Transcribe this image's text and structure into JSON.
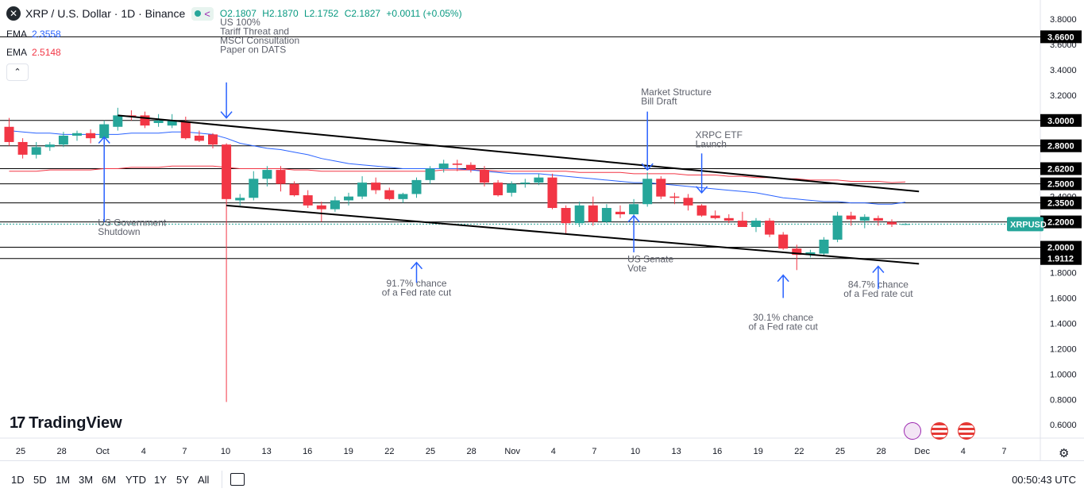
{
  "header": {
    "symbol_title": "XRP / U.S. Dollar · 1D · Binance",
    "open": "O2.1807",
    "high": "H2.1870",
    "low": "L2.1752",
    "close": "C2.1827",
    "change": "+0.0011 (+0.05%)"
  },
  "indicators": [
    {
      "label": "EMA",
      "value": "2.3558",
      "color": "#2962ff"
    },
    {
      "label": "EMA",
      "value": "2.5148",
      "color": "#f23645"
    }
  ],
  "branding": {
    "logo_text": "TradingView"
  },
  "toolbar": {
    "ranges": [
      "1D",
      "5D",
      "1M",
      "3M",
      "6M",
      "YTD",
      "1Y",
      "5Y",
      "All"
    ],
    "clock": "00:50:43 UTC"
  },
  "colors": {
    "up": "#26a69a",
    "down": "#f23645",
    "ema_fast": "#2962ff",
    "ema_slow": "#f23645",
    "annotation": "#2962ff",
    "price_tag": "#26a69a"
  },
  "chart_data": {
    "type": "candlestick",
    "y_axis_ticks": [
      "3.8000",
      "3.6000",
      "3.4000",
      "3.2000",
      "3.0000",
      "2.8000",
      "2.6000",
      "2.4000",
      "2.2000",
      "2.0000",
      "1.8000",
      "1.6000",
      "1.4000",
      "1.2000",
      "1.0000",
      "0.8000",
      "0.6000"
    ],
    "x_axis_ticks": [
      "25",
      "28",
      "Oct",
      "4",
      "7",
      "10",
      "13",
      "16",
      "19",
      "22",
      "25",
      "28",
      "Nov",
      "4",
      "7",
      "10",
      "13",
      "16",
      "19",
      "22",
      "25",
      "28",
      "Dec",
      "4",
      "7"
    ],
    "ylim": [
      0.52,
      3.9
    ],
    "current_price_label": "XRPUSD",
    "horizontal_levels": [
      {
        "value": 3.66,
        "label": "3.6600"
      },
      {
        "value": 3.0,
        "label": "3.0000"
      },
      {
        "value": 2.8,
        "label": "2.8000"
      },
      {
        "value": 2.62,
        "label": "2.6200"
      },
      {
        "value": 2.5,
        "label": "2.5000"
      },
      {
        "value": 2.35,
        "label": "2.3500"
      },
      {
        "value": 2.2,
        "label": "2.2000"
      },
      {
        "value": 2.0,
        "label": "2.0000"
      },
      {
        "value": 1.9112,
        "label": "1.9112"
      }
    ],
    "candles": [
      {
        "o": 2.95,
        "h": 3.02,
        "l": 2.8,
        "c": 2.83
      },
      {
        "o": 2.83,
        "h": 2.86,
        "l": 2.7,
        "c": 2.73
      },
      {
        "o": 2.73,
        "h": 2.83,
        "l": 2.7,
        "c": 2.79
      },
      {
        "o": 2.79,
        "h": 2.83,
        "l": 2.76,
        "c": 2.81
      },
      {
        "o": 2.81,
        "h": 2.91,
        "l": 2.79,
        "c": 2.88
      },
      {
        "o": 2.88,
        "h": 2.92,
        "l": 2.84,
        "c": 2.9
      },
      {
        "o": 2.9,
        "h": 2.93,
        "l": 2.82,
        "c": 2.86
      },
      {
        "o": 2.86,
        "h": 3.0,
        "l": 2.82,
        "c": 2.97
      },
      {
        "o": 2.95,
        "h": 3.1,
        "l": 2.92,
        "c": 3.04
      },
      {
        "o": 3.04,
        "h": 3.08,
        "l": 3.0,
        "c": 3.03
      },
      {
        "o": 3.04,
        "h": 3.07,
        "l": 2.94,
        "c": 2.96
      },
      {
        "o": 2.98,
        "h": 3.05,
        "l": 2.95,
        "c": 3.0
      },
      {
        "o": 2.96,
        "h": 3.05,
        "l": 2.94,
        "c": 3.0
      },
      {
        "o": 2.99,
        "h": 3.03,
        "l": 2.85,
        "c": 2.86
      },
      {
        "o": 2.88,
        "h": 2.92,
        "l": 2.83,
        "c": 2.84
      },
      {
        "o": 2.89,
        "h": 2.9,
        "l": 2.78,
        "c": 2.81
      },
      {
        "o": 2.81,
        "h": 2.82,
        "l": 0.78,
        "c": 2.38
      },
      {
        "o": 2.37,
        "h": 2.42,
        "l": 2.33,
        "c": 2.39
      },
      {
        "o": 2.39,
        "h": 2.6,
        "l": 2.37,
        "c": 2.54
      },
      {
        "o": 2.54,
        "h": 2.64,
        "l": 2.48,
        "c": 2.61
      },
      {
        "o": 2.61,
        "h": 2.64,
        "l": 2.44,
        "c": 2.5
      },
      {
        "o": 2.5,
        "h": 2.52,
        "l": 2.4,
        "c": 2.41
      },
      {
        "o": 2.41,
        "h": 2.45,
        "l": 2.31,
        "c": 2.33
      },
      {
        "o": 2.33,
        "h": 2.36,
        "l": 2.2,
        "c": 2.3
      },
      {
        "o": 2.3,
        "h": 2.4,
        "l": 2.28,
        "c": 2.37
      },
      {
        "o": 2.37,
        "h": 2.43,
        "l": 2.33,
        "c": 2.4
      },
      {
        "o": 2.4,
        "h": 2.56,
        "l": 2.38,
        "c": 2.51
      },
      {
        "o": 2.51,
        "h": 2.55,
        "l": 2.42,
        "c": 2.45
      },
      {
        "o": 2.45,
        "h": 2.47,
        "l": 2.37,
        "c": 2.38
      },
      {
        "o": 2.38,
        "h": 2.43,
        "l": 2.35,
        "c": 2.42
      },
      {
        "o": 2.42,
        "h": 2.55,
        "l": 2.39,
        "c": 2.53
      },
      {
        "o": 2.53,
        "h": 2.64,
        "l": 2.5,
        "c": 2.62
      },
      {
        "o": 2.62,
        "h": 2.69,
        "l": 2.59,
        "c": 2.66
      },
      {
        "o": 2.66,
        "h": 2.69,
        "l": 2.6,
        "c": 2.65
      },
      {
        "o": 2.65,
        "h": 2.67,
        "l": 2.59,
        "c": 2.61
      },
      {
        "o": 2.61,
        "h": 2.64,
        "l": 2.48,
        "c": 2.51
      },
      {
        "o": 2.51,
        "h": 2.53,
        "l": 2.4,
        "c": 2.41
      },
      {
        "o": 2.43,
        "h": 2.52,
        "l": 2.4,
        "c": 2.5
      },
      {
        "o": 2.5,
        "h": 2.54,
        "l": 2.47,
        "c": 2.51
      },
      {
        "o": 2.51,
        "h": 2.58,
        "l": 2.49,
        "c": 2.55
      },
      {
        "o": 2.55,
        "h": 2.58,
        "l": 2.3,
        "c": 2.31
      },
      {
        "o": 2.31,
        "h": 2.33,
        "l": 2.1,
        "c": 2.19
      },
      {
        "o": 2.19,
        "h": 2.36,
        "l": 2.16,
        "c": 2.33
      },
      {
        "o": 2.33,
        "h": 2.4,
        "l": 2.17,
        "c": 2.2
      },
      {
        "o": 2.2,
        "h": 2.34,
        "l": 2.19,
        "c": 2.31
      },
      {
        "o": 2.28,
        "h": 2.33,
        "l": 2.23,
        "c": 2.26
      },
      {
        "o": 2.26,
        "h": 2.38,
        "l": 2.24,
        "c": 2.34
      },
      {
        "o": 2.34,
        "h": 2.59,
        "l": 2.32,
        "c": 2.54
      },
      {
        "o": 2.54,
        "h": 2.56,
        "l": 2.38,
        "c": 2.4
      },
      {
        "o": 2.4,
        "h": 2.43,
        "l": 2.34,
        "c": 2.39
      },
      {
        "o": 2.39,
        "h": 2.42,
        "l": 2.29,
        "c": 2.33
      },
      {
        "o": 2.33,
        "h": 2.34,
        "l": 2.24,
        "c": 2.25
      },
      {
        "o": 2.25,
        "h": 2.29,
        "l": 2.22,
        "c": 2.23
      },
      {
        "o": 2.23,
        "h": 2.26,
        "l": 2.19,
        "c": 2.21
      },
      {
        "o": 2.21,
        "h": 2.28,
        "l": 2.16,
        "c": 2.16
      },
      {
        "o": 2.16,
        "h": 2.23,
        "l": 2.12,
        "c": 2.21
      },
      {
        "o": 2.21,
        "h": 2.23,
        "l": 2.08,
        "c": 2.1
      },
      {
        "o": 2.1,
        "h": 2.12,
        "l": 1.98,
        "c": 1.99
      },
      {
        "o": 1.99,
        "h": 2.02,
        "l": 1.82,
        "c": 1.94
      },
      {
        "o": 1.94,
        "h": 1.98,
        "l": 1.92,
        "c": 1.96
      },
      {
        "o": 1.95,
        "h": 2.08,
        "l": 1.93,
        "c": 2.06
      },
      {
        "o": 2.06,
        "h": 2.28,
        "l": 2.04,
        "c": 2.25
      },
      {
        "o": 2.25,
        "h": 2.28,
        "l": 2.17,
        "c": 2.22
      },
      {
        "o": 2.21,
        "h": 2.26,
        "l": 2.15,
        "c": 2.24
      },
      {
        "o": 2.23,
        "h": 2.25,
        "l": 2.17,
        "c": 2.21
      },
      {
        "o": 2.2,
        "h": 2.22,
        "l": 2.16,
        "c": 2.18
      },
      {
        "o": 2.18,
        "h": 2.19,
        "l": 2.175,
        "c": 2.183
      }
    ],
    "ema_fast": [
      2.92,
      2.91,
      2.9,
      2.9,
      2.89,
      2.89,
      2.89,
      2.89,
      2.89,
      2.9,
      2.9,
      2.9,
      2.91,
      2.91,
      2.9,
      2.89,
      2.86,
      2.82,
      2.8,
      2.78,
      2.77,
      2.75,
      2.73,
      2.7,
      2.68,
      2.66,
      2.65,
      2.64,
      2.63,
      2.62,
      2.62,
      2.62,
      2.62,
      2.62,
      2.61,
      2.6,
      2.59,
      2.58,
      2.58,
      2.58,
      2.57,
      2.56,
      2.55,
      2.54,
      2.53,
      2.52,
      2.51,
      2.51,
      2.5,
      2.49,
      2.48,
      2.47,
      2.46,
      2.45,
      2.44,
      2.43,
      2.41,
      2.39,
      2.38,
      2.37,
      2.36,
      2.36,
      2.35,
      2.35,
      2.34,
      2.34,
      2.3558
    ],
    "ema_slow": [
      2.6,
      2.6,
      2.6,
      2.61,
      2.61,
      2.61,
      2.61,
      2.62,
      2.62,
      2.63,
      2.63,
      2.63,
      2.64,
      2.64,
      2.64,
      2.64,
      2.63,
      2.62,
      2.62,
      2.62,
      2.62,
      2.61,
      2.61,
      2.6,
      2.6,
      2.6,
      2.6,
      2.6,
      2.6,
      2.6,
      2.6,
      2.6,
      2.61,
      2.61,
      2.61,
      2.61,
      2.6,
      2.6,
      2.6,
      2.6,
      2.6,
      2.6,
      2.59,
      2.59,
      2.59,
      2.59,
      2.58,
      2.58,
      2.58,
      2.58,
      2.57,
      2.57,
      2.57,
      2.56,
      2.56,
      2.55,
      2.55,
      2.54,
      2.54,
      2.53,
      2.53,
      2.53,
      2.52,
      2.52,
      2.52,
      2.51,
      2.5148
    ],
    "trendlines": [
      {
        "from": {
          "x": 8,
          "y": 3.04
        },
        "to": {
          "x": 67,
          "y": 2.44
        }
      },
      {
        "from": {
          "x": 16,
          "y": 2.33
        },
        "to": {
          "x": 67,
          "y": 1.87
        }
      }
    ],
    "annotations": [
      {
        "lines": [
          "US 100%",
          "Tariff Threat and",
          "MSCI Consultation",
          "Paper on DATS"
        ],
        "x": 16,
        "text_y": 3.75,
        "arrow_from": 3.3,
        "arrow_to": 3.02,
        "align": "start"
      },
      {
        "lines": [
          "US Government",
          "Shutdown"
        ],
        "x": 7,
        "text_y": 2.17,
        "arrow_from": 2.2,
        "arrow_to": 2.87,
        "align": "start"
      },
      {
        "lines": [
          "Market Structure",
          "Bill Draft"
        ],
        "x": 47,
        "text_y": 3.2,
        "arrow_from": 3.07,
        "arrow_to": 2.61,
        "align": "start"
      },
      {
        "lines": [
          "XRPC ETF",
          "Launch"
        ],
        "x": 51,
        "text_y": 2.86,
        "arrow_from": 2.74,
        "arrow_to": 2.43,
        "align": "start"
      },
      {
        "lines": [
          "US Senate",
          "Vote"
        ],
        "x": 46,
        "text_y": 1.88,
        "arrow_from": 1.96,
        "arrow_to": 2.25,
        "align": "start"
      },
      {
        "lines": [
          "91.7% chance",
          "of a Fed rate cut"
        ],
        "x": 30,
        "text_y": 1.69,
        "arrow_from": 1.72,
        "arrow_to": 1.88,
        "align": "middle"
      },
      {
        "lines": [
          "30.1% chance",
          "of a Fed rate cut"
        ],
        "x": 57,
        "text_y": 1.42,
        "arrow_from": 1.6,
        "arrow_to": 1.78,
        "align": "middle"
      },
      {
        "lines": [
          "84.7% chance",
          "of a Fed rate cut"
        ],
        "x": 64,
        "text_y": 1.68,
        "arrow_from": 1.67,
        "arrow_to": 1.85,
        "align": "middle"
      }
    ]
  }
}
